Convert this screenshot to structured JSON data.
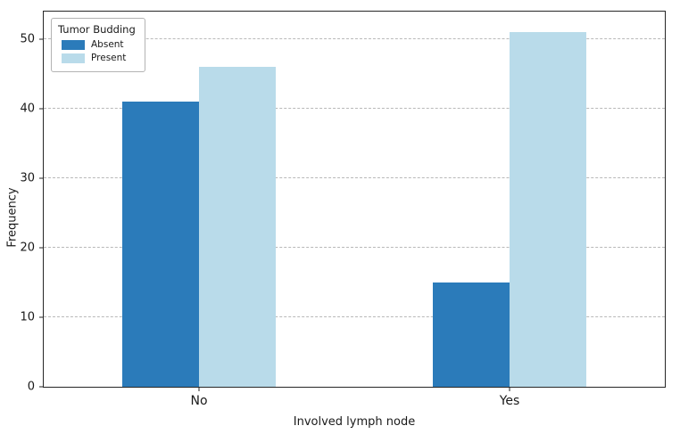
{
  "chart_data": {
    "type": "bar",
    "categories": [
      "No",
      "Yes"
    ],
    "series": [
      {
        "name": "Absent",
        "values": [
          41,
          15
        ],
        "color": "#2b7bba"
      },
      {
        "name": "Present",
        "values": [
          46,
          51
        ],
        "color": "#b9dbea"
      }
    ],
    "title": "",
    "xlabel": "Involved lymph node",
    "ylabel": "Frequency",
    "ylim": [
      0,
      54
    ],
    "yticks": [
      0,
      10,
      20,
      30,
      40,
      50
    ],
    "group_centers_pct": [
      25,
      75
    ],
    "legend_title": "Tumor Budding",
    "legend_position": "upper left",
    "grid": "horizontal dashed"
  }
}
